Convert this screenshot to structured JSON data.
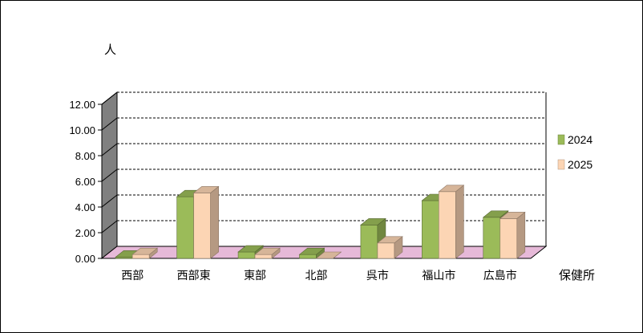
{
  "chart_data": {
    "type": "bar",
    "style": "3d-clustered-column",
    "title": "",
    "ylabel": "人",
    "xlabel": "保健所",
    "ylim": [
      0,
      12
    ],
    "yticks": [
      "0.00",
      "2.00",
      "4.00",
      "6.00",
      "8.00",
      "10.00",
      "12.00"
    ],
    "grid": true,
    "legend_position": "right",
    "categories": [
      "西部",
      "西部東",
      "東部",
      "北部",
      "呉市",
      "福山市",
      "広島市"
    ],
    "series": [
      {
        "name": "2024",
        "color": "#9bbb59",
        "values": [
          0.1,
          4.8,
          0.5,
          0.3,
          2.6,
          4.5,
          3.2
        ]
      },
      {
        "name": "2025",
        "color": "#fcd5b4",
        "values": [
          0.3,
          5.1,
          0.3,
          0.0,
          1.2,
          5.2,
          3.1
        ]
      }
    ],
    "floor_color": "#e6b9d8",
    "wall_color": "#808080"
  }
}
